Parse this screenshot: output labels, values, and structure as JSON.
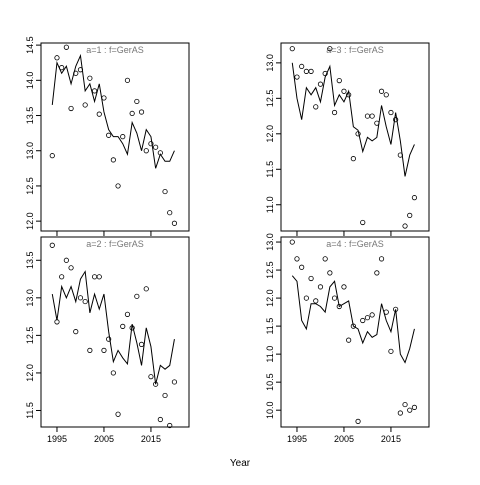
{
  "xlabel": "Year",
  "chart_data": [
    {
      "type": "line",
      "title": "a=1 : f=GerAS",
      "show_xtick_labels": false,
      "x": [
        1994,
        1995,
        1996,
        1997,
        1998,
        1999,
        2000,
        2001,
        2002,
        2003,
        2004,
        2005,
        2006,
        2007,
        2008,
        2009,
        2010,
        2011,
        2012,
        2013,
        2014,
        2015,
        2016,
        2017,
        2018,
        2019,
        2020
      ],
      "series": [
        {
          "marker": "circle",
          "color": "#000000",
          "values": [
            12.93,
            14.32,
            14.18,
            14.47,
            13.6,
            14.1,
            14.15,
            13.65,
            14.03,
            13.85,
            13.52,
            13.75,
            13.22,
            12.87,
            12.5,
            13.2,
            14.0,
            13.53,
            13.7,
            13.55,
            13.0,
            13.1,
            13.05,
            12.97,
            12.42,
            12.12,
            11.97
          ]
        },
        {
          "marker": "line",
          "color": "#000000",
          "values": [
            13.65,
            14.25,
            14.1,
            14.2,
            13.95,
            14.2,
            14.35,
            13.85,
            13.95,
            13.7,
            13.95,
            13.55,
            13.3,
            13.2,
            13.2,
            13.1,
            12.95,
            13.4,
            13.25,
            13.0,
            13.3,
            13.2,
            12.75,
            12.95,
            12.85,
            12.85,
            13.0
          ]
        }
      ],
      "xlim": [
        1991.6,
        2023.1
      ],
      "xticks": [
        1995,
        2005,
        2015
      ],
      "ylim": [
        11.86,
        14.53
      ],
      "yticks": [
        {
          "value": 12,
          "label": "12.0"
        },
        12.5,
        {
          "value": 13,
          "label": "13.0"
        },
        13.5,
        {
          "value": 14,
          "label": "14.0"
        },
        14.5
      ]
    },
    {
      "type": "line",
      "title": "a=3 : f=GerAS",
      "show_xtick_labels": false,
      "x": [
        1994,
        1995,
        1996,
        1997,
        1998,
        1999,
        2000,
        2001,
        2002,
        2003,
        2004,
        2005,
        2006,
        2007,
        2008,
        2009,
        2010,
        2011,
        2012,
        2013,
        2014,
        2015,
        2016,
        2017,
        2018,
        2019,
        2020
      ],
      "series": [
        {
          "marker": "circle",
          "color": "#000000",
          "values": [
            13.2,
            12.8,
            12.95,
            12.88,
            12.88,
            12.38,
            12.7,
            12.85,
            13.2,
            12.3,
            12.75,
            12.6,
            12.55,
            11.65,
            12.0,
            10.75,
            12.25,
            12.25,
            12.15,
            12.6,
            12.55,
            12.3,
            12.2,
            11.7,
            10.7,
            10.85,
            11.1
          ]
        },
        {
          "marker": "line",
          "color": "#000000",
          "values": [
            13.0,
            12.5,
            12.2,
            12.65,
            12.55,
            12.65,
            12.45,
            12.8,
            12.95,
            12.4,
            12.55,
            12.45,
            12.6,
            12.1,
            12.05,
            11.75,
            11.95,
            11.9,
            11.95,
            12.4,
            12.1,
            11.85,
            12.3,
            11.9,
            11.4,
            11.7,
            11.85
          ]
        }
      ],
      "xlim": [
        1991.6,
        2023.1
      ],
      "xticks": [
        1995,
        2005,
        2015
      ],
      "ylim": [
        10.63,
        13.28
      ],
      "yticks": [
        {
          "value": 11,
          "label": "11.0"
        },
        11.5,
        {
          "value": 12,
          "label": "12.0"
        },
        12.5,
        {
          "value": 13,
          "label": "13.0"
        }
      ]
    },
    {
      "type": "line",
      "title": "a=2 : f=GerAS",
      "show_xtick_labels": true,
      "x": [
        1994,
        1995,
        1996,
        1997,
        1998,
        1999,
        2000,
        2001,
        2002,
        2003,
        2004,
        2005,
        2006,
        2007,
        2008,
        2009,
        2010,
        2011,
        2012,
        2013,
        2014,
        2015,
        2016,
        2017,
        2018,
        2019,
        2020
      ],
      "series": [
        {
          "marker": "circle",
          "color": "#000000",
          "values": [
            13.7,
            12.68,
            13.28,
            13.5,
            13.4,
            12.55,
            13.0,
            12.95,
            12.3,
            13.28,
            13.28,
            12.3,
            12.45,
            12.0,
            11.45,
            12.62,
            12.78,
            12.6,
            13.02,
            12.38,
            13.12,
            11.95,
            11.85,
            11.38,
            11.7,
            11.3,
            11.88
          ]
        },
        {
          "marker": "line",
          "color": "#000000",
          "values": [
            13.05,
            12.7,
            13.15,
            13.0,
            13.15,
            12.95,
            13.25,
            13.35,
            12.8,
            13.05,
            12.85,
            13.05,
            12.55,
            12.15,
            12.3,
            12.2,
            12.12,
            12.65,
            12.4,
            12.1,
            12.6,
            12.35,
            11.85,
            12.1,
            12.05,
            12.1,
            12.45
          ]
        }
      ],
      "xlim": [
        1991.6,
        2023.1
      ],
      "xticks": [
        1995,
        2005,
        2015
      ],
      "ylim": [
        11.28,
        13.81
      ],
      "yticks": [
        11.5,
        {
          "value": 12,
          "label": "12.0"
        },
        12.5,
        {
          "value": 13,
          "label": "13.0"
        },
        13.5
      ]
    },
    {
      "type": "line",
      "title": "a=4 : f=GerAS",
      "show_xtick_labels": true,
      "x": [
        1994,
        1995,
        1996,
        1997,
        1998,
        1999,
        2000,
        2001,
        2002,
        2003,
        2004,
        2005,
        2006,
        2007,
        2008,
        2009,
        2010,
        2011,
        2012,
        2013,
        2014,
        2015,
        2016,
        2017,
        2018,
        2019,
        2020
      ],
      "series": [
        {
          "marker": "circle",
          "color": "#000000",
          "values": [
            13.0,
            12.7,
            12.55,
            12.0,
            12.35,
            11.95,
            12.2,
            12.7,
            12.45,
            12.0,
            11.85,
            12.2,
            11.25,
            11.5,
            9.8,
            11.6,
            11.65,
            11.7,
            12.45,
            12.7,
            11.75,
            11.05,
            11.8,
            9.95,
            10.1,
            10.0,
            10.05
          ]
        },
        {
          "marker": "line",
          "color": "#000000",
          "values": [
            12.4,
            12.3,
            11.6,
            11.45,
            11.9,
            11.9,
            11.85,
            11.75,
            12.2,
            12.3,
            11.85,
            11.9,
            11.95,
            11.5,
            11.45,
            11.2,
            11.4,
            11.3,
            11.35,
            11.9,
            11.6,
            11.4,
            11.8,
            11.0,
            10.85,
            11.1,
            11.45
          ]
        }
      ],
      "xlim": [
        1991.6,
        2023.1
      ],
      "xticks": [
        1995,
        2005,
        2015
      ],
      "ylim": [
        9.7,
        13.09
      ],
      "yticks": [
        {
          "value": 10,
          "label": "10.0"
        },
        10.5,
        {
          "value": 11,
          "label": "11.0"
        },
        11.5,
        {
          "value": 12,
          "label": "12.0"
        },
        12.5,
        {
          "value": 13,
          "label": "13.0"
        }
      ]
    }
  ]
}
